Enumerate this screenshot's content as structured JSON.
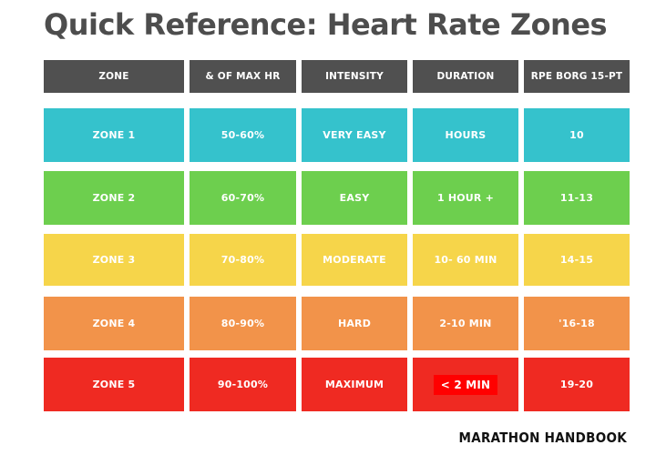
{
  "title": "Quick Reference: Heart Rate Zones",
  "table": {
    "headers": [
      "ZONE",
      "& OF MAX HR",
      "INTENSITY",
      "DURATION",
      "RPE BORG 15-PT"
    ],
    "rows": [
      {
        "zone": "ZONE 1",
        "max_hr": "50-60%",
        "intensity": "VERY EASY",
        "duration": "HOURS",
        "rpe": "10",
        "color": "#35c2cc"
      },
      {
        "zone": "ZONE 2",
        "max_hr": "60-70%",
        "intensity": "EASY",
        "duration": "1 HOUR +",
        "rpe": "11-13",
        "color": "#6dcf4e"
      },
      {
        "zone": "ZONE 3",
        "max_hr": "70-80%",
        "intensity": "MODERATE",
        "duration": "10- 60 MIN",
        "rpe": "14-15",
        "color": "#f6d54a"
      },
      {
        "zone": "ZONE 4",
        "max_hr": "80-90%",
        "intensity": "HARD",
        "duration": "2-10 MIN",
        "rpe": "'16-18",
        "color": "#f2934a"
      },
      {
        "zone": "ZONE 5",
        "max_hr": "90-100%",
        "intensity": "MAXIMUM",
        "duration": "< 2 MIN",
        "rpe": "19-20",
        "color": "#ef2a22"
      }
    ]
  },
  "brand": "MARATHON HANDBOOK"
}
